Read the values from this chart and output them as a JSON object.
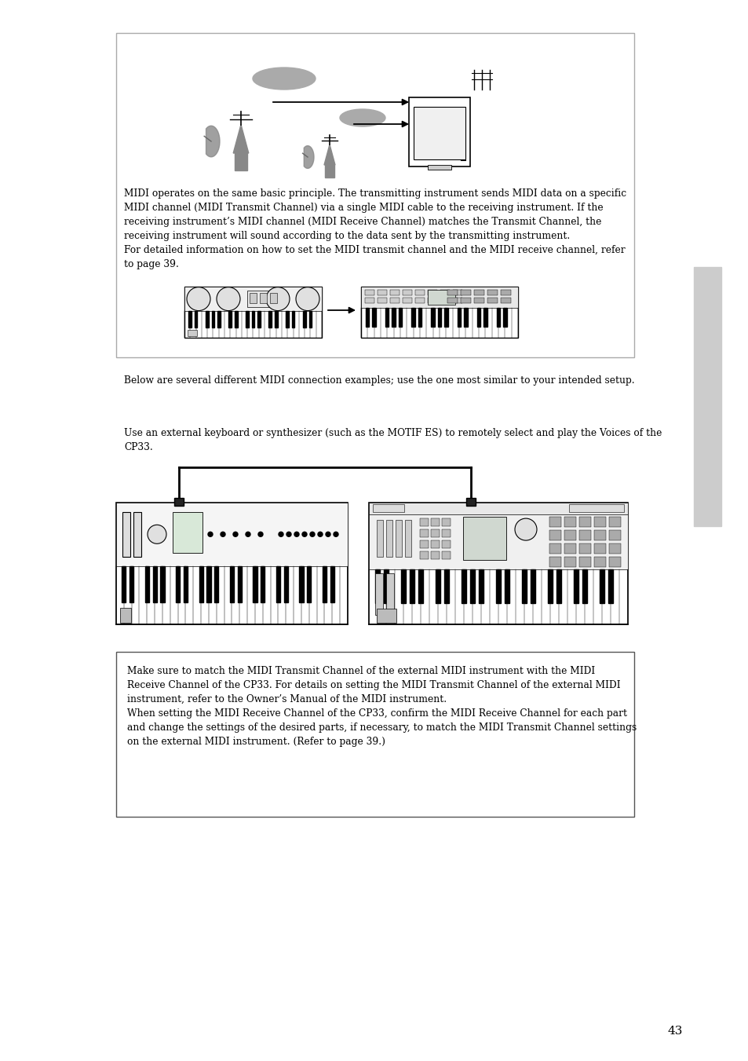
{
  "bg_color": "#ffffff",
  "page_number": "43",
  "font_size_body": 8.8,
  "font_size_page": 11,
  "para1": "MIDI operates on the same basic principle. The transmitting instrument sends MIDI data on a specific\nMIDI channel (MIDI Transmit Channel) via a single MIDI cable to the receiving instrument. If the\nreceiving instrument’s MIDI channel (MIDI Receive Channel) matches the Transmit Channel, the\nreceiving instrument will sound according to the data sent by the transmitting instrument.\nFor detailed information on how to set the MIDI transmit channel and the MIDI receive channel, refer\nto page 39.",
  "para2": "Below are several different MIDI connection examples; use the one most similar to your intended setup.",
  "para3": "Use an external keyboard or synthesizer (such as the MOTIF ES) to remotely select and play the Voices of the\nCP33.",
  "note_text": "Make sure to match the MIDI Transmit Channel of the external MIDI instrument with the MIDI\nReceive Channel of the CP33. For details on setting the MIDI Transmit Channel of the external MIDI\ninstrument, refer to the Owner’s Manual of the MIDI instrument.\nWhen setting the MIDI Receive Channel of the CP33, confirm the MIDI Receive Channel for each part\nand change the settings of the desired parts, if necessary, to match the MIDI Transmit Channel settings\non the external MIDI instrument. (Refer to page 39.)"
}
